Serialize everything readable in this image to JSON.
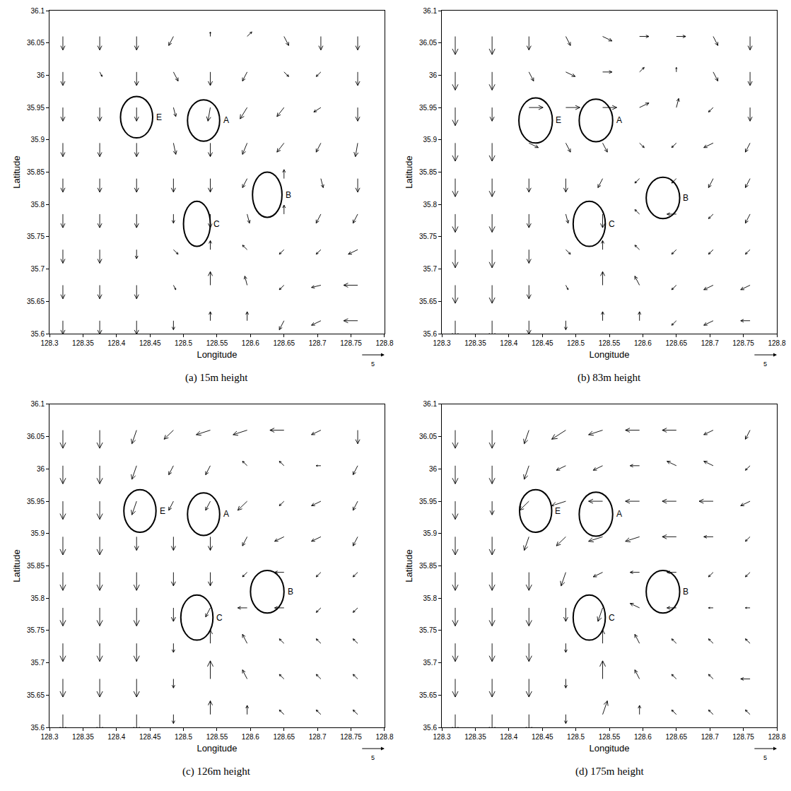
{
  "chart_data": [
    {
      "type": "quiver",
      "caption": "(a) 15m height",
      "x_label": "Longitude",
      "y_label": "Latitude",
      "xlim": [
        128.3,
        128.8
      ],
      "ylim": [
        35.6,
        36.1
      ],
      "xticks": [
        128.3,
        128.35,
        128.4,
        128.45,
        128.5,
        128.55,
        128.6,
        128.65,
        128.7,
        128.75,
        128.8
      ],
      "yticks": [
        35.6,
        35.65,
        35.7,
        35.75,
        35.8,
        35.85,
        35.9,
        35.95,
        36,
        36.05,
        36.1
      ],
      "reference_vector": 5,
      "x": [
        128.32,
        128.375,
        128.43,
        128.485,
        128.54,
        128.595,
        128.65,
        128.705,
        128.76
      ],
      "y": [
        36.06,
        36.005,
        35.95,
        35.895,
        35.84,
        35.785,
        35.73,
        35.675,
        35.62
      ],
      "u": [
        [
          0,
          0,
          0,
          -1,
          0,
          1,
          1,
          0,
          0
        ],
        [
          0,
          0.5,
          0,
          1,
          0,
          -1,
          1,
          -1,
          0
        ],
        [
          0,
          0,
          0,
          0.5,
          -0.5,
          -1.5,
          -1.5,
          -1.5,
          0
        ],
        [
          0,
          0,
          0,
          0.5,
          0,
          -1,
          -1.5,
          -1,
          -0.5
        ],
        [
          0,
          0,
          0,
          0,
          0,
          -1,
          0,
          0.5,
          0
        ],
        [
          0,
          0,
          0,
          0,
          0,
          0.5,
          0,
          -1,
          -1
        ],
        [
          0,
          0,
          0,
          1,
          0,
          -1,
          -1,
          -1,
          -2
        ],
        [
          0,
          0,
          0,
          0.5,
          0,
          -0.5,
          -1,
          -2,
          -3
        ],
        [
          0,
          0,
          0,
          0,
          0,
          0,
          -1,
          -2,
          -3
        ]
      ],
      "v": [
        [
          -3,
          -3,
          -3,
          -2,
          1,
          1,
          -2,
          -3,
          -3
        ],
        [
          -3,
          -1,
          -3,
          -2,
          -3,
          -2,
          -1,
          -1,
          -3
        ],
        [
          -3,
          -3,
          -3,
          -2,
          -3,
          -2.5,
          -2,
          -1,
          -3
        ],
        [
          -3,
          -3,
          -3,
          -2.5,
          -3,
          -2.5,
          -2,
          -2,
          -3
        ],
        [
          -3,
          -3,
          -3,
          -3,
          -3,
          -2,
          2,
          -2,
          -3
        ],
        [
          -3,
          -3,
          -3,
          -2,
          -3,
          -2,
          2,
          -2,
          -2
        ],
        [
          -3,
          -3,
          -2,
          -1,
          2,
          1,
          -1,
          -1,
          -1
        ],
        [
          -3,
          -3,
          -3,
          -1,
          3,
          2,
          -1,
          -0.5,
          0
        ],
        [
          -3,
          -3,
          -3,
          -2,
          2,
          2,
          -2,
          -1,
          0
        ]
      ],
      "regions": [
        {
          "label": "E",
          "center": [
            128.43,
            35.935
          ],
          "radius": [
            0.024,
            0.032
          ]
        },
        {
          "label": "A",
          "center": [
            128.53,
            35.93
          ],
          "radius": [
            0.024,
            0.032
          ]
        },
        {
          "label": "B",
          "center": [
            128.625,
            35.815
          ],
          "radius": [
            0.022,
            0.035
          ]
        },
        {
          "label": "C",
          "center": [
            128.52,
            35.77
          ],
          "radius": [
            0.02,
            0.035
          ]
        }
      ]
    },
    {
      "type": "quiver",
      "caption": "(b) 83m height",
      "x_label": "Longitude",
      "y_label": "Latitude",
      "xlim": [
        128.3,
        128.8
      ],
      "ylim": [
        35.6,
        36.1
      ],
      "xticks": [
        128.3,
        128.35,
        128.4,
        128.45,
        128.5,
        128.55,
        128.6,
        128.65,
        128.7,
        128.75,
        128.8
      ],
      "yticks": [
        35.6,
        35.65,
        35.7,
        35.75,
        35.8,
        35.85,
        35.9,
        35.95,
        36,
        36.05,
        36.1
      ],
      "reference_vector": 5,
      "x": [
        128.32,
        128.375,
        128.43,
        128.485,
        128.54,
        128.595,
        128.65,
        128.705,
        128.76
      ],
      "y": [
        36.06,
        36.005,
        35.95,
        35.895,
        35.84,
        35.785,
        35.73,
        35.675,
        35.62
      ],
      "u": [
        [
          0,
          0,
          0,
          1,
          2,
          2,
          2,
          1,
          0
        ],
        [
          0,
          0,
          1,
          2,
          2,
          1,
          0,
          1,
          0
        ],
        [
          0,
          0,
          3,
          3,
          3,
          2,
          0.5,
          -1,
          0
        ],
        [
          0,
          0,
          2,
          1,
          1,
          1,
          -1,
          -2,
          -1
        ],
        [
          0,
          0,
          0,
          0,
          -1,
          -1,
          -1,
          -1,
          -1
        ],
        [
          0,
          0,
          0,
          0.5,
          0,
          -1,
          -2,
          -1,
          -1
        ],
        [
          0,
          0,
          0,
          1,
          0,
          -1,
          -1,
          -1,
          -1
        ],
        [
          0,
          0,
          0,
          0.5,
          0,
          -1,
          -1,
          -2,
          -2
        ],
        [
          0,
          0,
          0,
          0,
          0,
          0,
          -1,
          -2,
          -2
        ]
      ],
      "v": [
        [
          -4,
          -4,
          -3,
          -2,
          -1,
          0,
          0,
          -2,
          -3
        ],
        [
          -4,
          -4,
          -2,
          -1,
          0,
          1,
          1,
          -2,
          -3
        ],
        [
          -4,
          -3,
          0,
          0,
          0,
          1,
          2,
          -1,
          -3
        ],
        [
          -4,
          -4,
          -1,
          -2,
          -2,
          -1,
          -1,
          -1,
          -2
        ],
        [
          -4,
          -4,
          -3,
          -3,
          -2,
          -1,
          -1,
          -2,
          -2
        ],
        [
          -4,
          -4,
          -3,
          -2,
          -3,
          1,
          0,
          -1,
          -2
        ],
        [
          -4,
          -4,
          -3,
          -1,
          2,
          1,
          -1,
          -1,
          -1
        ],
        [
          -4,
          -4,
          -3,
          -1,
          3,
          2,
          -1,
          -1,
          -1
        ],
        [
          -4,
          -4,
          -3,
          -2,
          2,
          2,
          -1,
          -1,
          0
        ]
      ],
      "regions": [
        {
          "label": "E",
          "center": [
            128.44,
            35.93
          ],
          "radius": [
            0.025,
            0.035
          ]
        },
        {
          "label": "A",
          "center": [
            128.53,
            35.93
          ],
          "radius": [
            0.025,
            0.033
          ]
        },
        {
          "label": "B",
          "center": [
            128.63,
            35.81
          ],
          "radius": [
            0.025,
            0.032
          ]
        },
        {
          "label": "C",
          "center": [
            128.52,
            35.77
          ],
          "radius": [
            0.024,
            0.035
          ]
        }
      ]
    },
    {
      "type": "quiver",
      "caption": "(c) 126m height",
      "x_label": "Longitude",
      "y_label": "Latitude",
      "xlim": [
        128.3,
        128.8
      ],
      "ylim": [
        35.6,
        36.1
      ],
      "xticks": [
        128.3,
        128.35,
        128.4,
        128.45,
        128.5,
        128.55,
        128.6,
        128.65,
        128.7,
        128.75,
        128.8
      ],
      "yticks": [
        35.6,
        35.65,
        35.7,
        35.75,
        35.8,
        35.85,
        35.9,
        35.95,
        36,
        36.05,
        36.1
      ],
      "reference_vector": 5,
      "x": [
        128.32,
        128.375,
        128.43,
        128.485,
        128.54,
        128.595,
        128.65,
        128.705,
        128.76
      ],
      "y": [
        36.06,
        36.005,
        35.95,
        35.895,
        35.84,
        35.785,
        35.73,
        35.675,
        35.62
      ],
      "u": [
        [
          0,
          0,
          -1,
          -2,
          -3,
          -3,
          -3,
          -2,
          0
        ],
        [
          0,
          0,
          -1,
          -1,
          -1,
          -1,
          -1,
          -1,
          -1
        ],
        [
          0,
          0,
          -1,
          -1,
          -1,
          -2,
          -1,
          -2,
          -1
        ],
        [
          0,
          0,
          0,
          0,
          0,
          -1,
          -2,
          -2,
          -1
        ],
        [
          0,
          0,
          0,
          0,
          0,
          -1,
          -2,
          -1,
          -1
        ],
        [
          0,
          0,
          0,
          0,
          -1,
          -2,
          -2,
          -1,
          -1
        ],
        [
          0,
          0,
          0,
          0,
          0,
          -1,
          -1,
          -1,
          -1
        ],
        [
          0,
          0,
          0,
          0,
          0,
          -1,
          -1,
          -1,
          -1
        ],
        [
          0,
          0,
          0,
          0,
          0,
          0,
          -1,
          -1,
          -1
        ]
      ],
      "v": [
        [
          -4,
          -4,
          -3,
          -2,
          -1,
          -1,
          0,
          -1,
          -3
        ],
        [
          -4,
          -4,
          -3,
          -2,
          -2,
          1,
          1,
          0,
          -2
        ],
        [
          -4,
          -4,
          -3,
          -2,
          -2,
          -2,
          -1,
          -1,
          -2
        ],
        [
          -4,
          -4,
          -3,
          -3,
          -3,
          -2,
          -1,
          -1,
          -2
        ],
        [
          -4,
          -4,
          -4,
          -3,
          -3,
          -1,
          0,
          -1,
          -1
        ],
        [
          -4,
          -4,
          -4,
          -3,
          -2,
          0,
          0,
          -1,
          -1
        ],
        [
          -4,
          -4,
          -4,
          -2,
          3,
          2,
          1,
          1,
          1
        ],
        [
          -4,
          -4,
          -4,
          -2,
          4,
          2,
          1,
          1,
          1
        ],
        [
          -4,
          -4,
          -4,
          -2,
          3,
          2,
          1,
          1,
          1
        ]
      ],
      "regions": [
        {
          "label": "E",
          "center": [
            128.435,
            35.935
          ],
          "radius": [
            0.024,
            0.033
          ]
        },
        {
          "label": "A",
          "center": [
            128.53,
            35.93
          ],
          "radius": [
            0.024,
            0.033
          ]
        },
        {
          "label": "B",
          "center": [
            128.625,
            35.81
          ],
          "radius": [
            0.025,
            0.033
          ]
        },
        {
          "label": "C",
          "center": [
            128.52,
            35.77
          ],
          "radius": [
            0.024,
            0.035
          ]
        }
      ]
    },
    {
      "type": "quiver",
      "caption": "(d) 175m height",
      "x_label": "Longitude",
      "y_label": "Latitude",
      "xlim": [
        128.3,
        128.8
      ],
      "ylim": [
        35.6,
        36.1
      ],
      "xticks": [
        128.3,
        128.35,
        128.4,
        128.45,
        128.5,
        128.55,
        128.6,
        128.65,
        128.7,
        128.75,
        128.8
      ],
      "yticks": [
        35.6,
        35.65,
        35.7,
        35.75,
        35.8,
        35.85,
        35.9,
        35.95,
        36,
        36.05,
        36.1
      ],
      "reference_vector": 5,
      "x": [
        128.32,
        128.375,
        128.43,
        128.485,
        128.54,
        128.595,
        128.65,
        128.705,
        128.76
      ],
      "y": [
        36.06,
        36.005,
        35.95,
        35.895,
        35.84,
        35.785,
        35.73,
        35.675,
        35.62
      ],
      "u": [
        [
          0,
          0,
          -1,
          -3,
          -3,
          -3,
          -3,
          -2,
          -1
        ],
        [
          0,
          0,
          -1,
          -2,
          -2,
          -2,
          -2,
          -2,
          -1
        ],
        [
          0,
          0,
          -2,
          -3,
          -3,
          -3,
          -3,
          -3,
          -2
        ],
        [
          0,
          0,
          -1,
          -2,
          -3,
          -3,
          -3,
          -2,
          -1
        ],
        [
          0,
          0,
          0,
          -1,
          -2,
          -2,
          -2,
          -1,
          -1
        ],
        [
          0,
          0,
          0,
          0,
          -1,
          -2,
          -2,
          -1,
          -1
        ],
        [
          0,
          0,
          0,
          0,
          0,
          -1,
          -1,
          -1,
          -1
        ],
        [
          0,
          0,
          0,
          0,
          0,
          -1,
          -1,
          -1,
          -2
        ],
        [
          0,
          0,
          0,
          0,
          1,
          0,
          -1,
          -1,
          -1
        ]
      ],
      "v": [
        [
          -4,
          -4,
          -3,
          -2,
          -1,
          0,
          0,
          -1,
          -2
        ],
        [
          -4,
          -4,
          -3,
          -1,
          -1,
          0,
          1,
          1,
          -1
        ],
        [
          -4,
          -3,
          -2,
          -1,
          0,
          0,
          0,
          0,
          -1
        ],
        [
          -4,
          -4,
          -3,
          -2,
          -1,
          -1,
          0,
          0,
          -1
        ],
        [
          -4,
          -4,
          -4,
          -3,
          -1,
          0,
          0,
          -1,
          -1
        ],
        [
          -4,
          -4,
          -4,
          -3,
          -3,
          1,
          0,
          0,
          0
        ],
        [
          -4,
          -4,
          -4,
          -2,
          3,
          2,
          1,
          1,
          1
        ],
        [
          -4,
          -4,
          -4,
          -2,
          4,
          2,
          1,
          1,
          0
        ],
        [
          -4,
          -4,
          -4,
          -2,
          3,
          2,
          1,
          1,
          1
        ]
      ],
      "regions": [
        {
          "label": "E",
          "center": [
            128.44,
            35.935
          ],
          "radius": [
            0.024,
            0.033
          ]
        },
        {
          "label": "A",
          "center": [
            128.53,
            35.93
          ],
          "radius": [
            0.025,
            0.034
          ]
        },
        {
          "label": "B",
          "center": [
            128.63,
            35.81
          ],
          "radius": [
            0.025,
            0.033
          ]
        },
        {
          "label": "C",
          "center": [
            128.52,
            35.77
          ],
          "radius": [
            0.024,
            0.035
          ]
        }
      ]
    }
  ]
}
